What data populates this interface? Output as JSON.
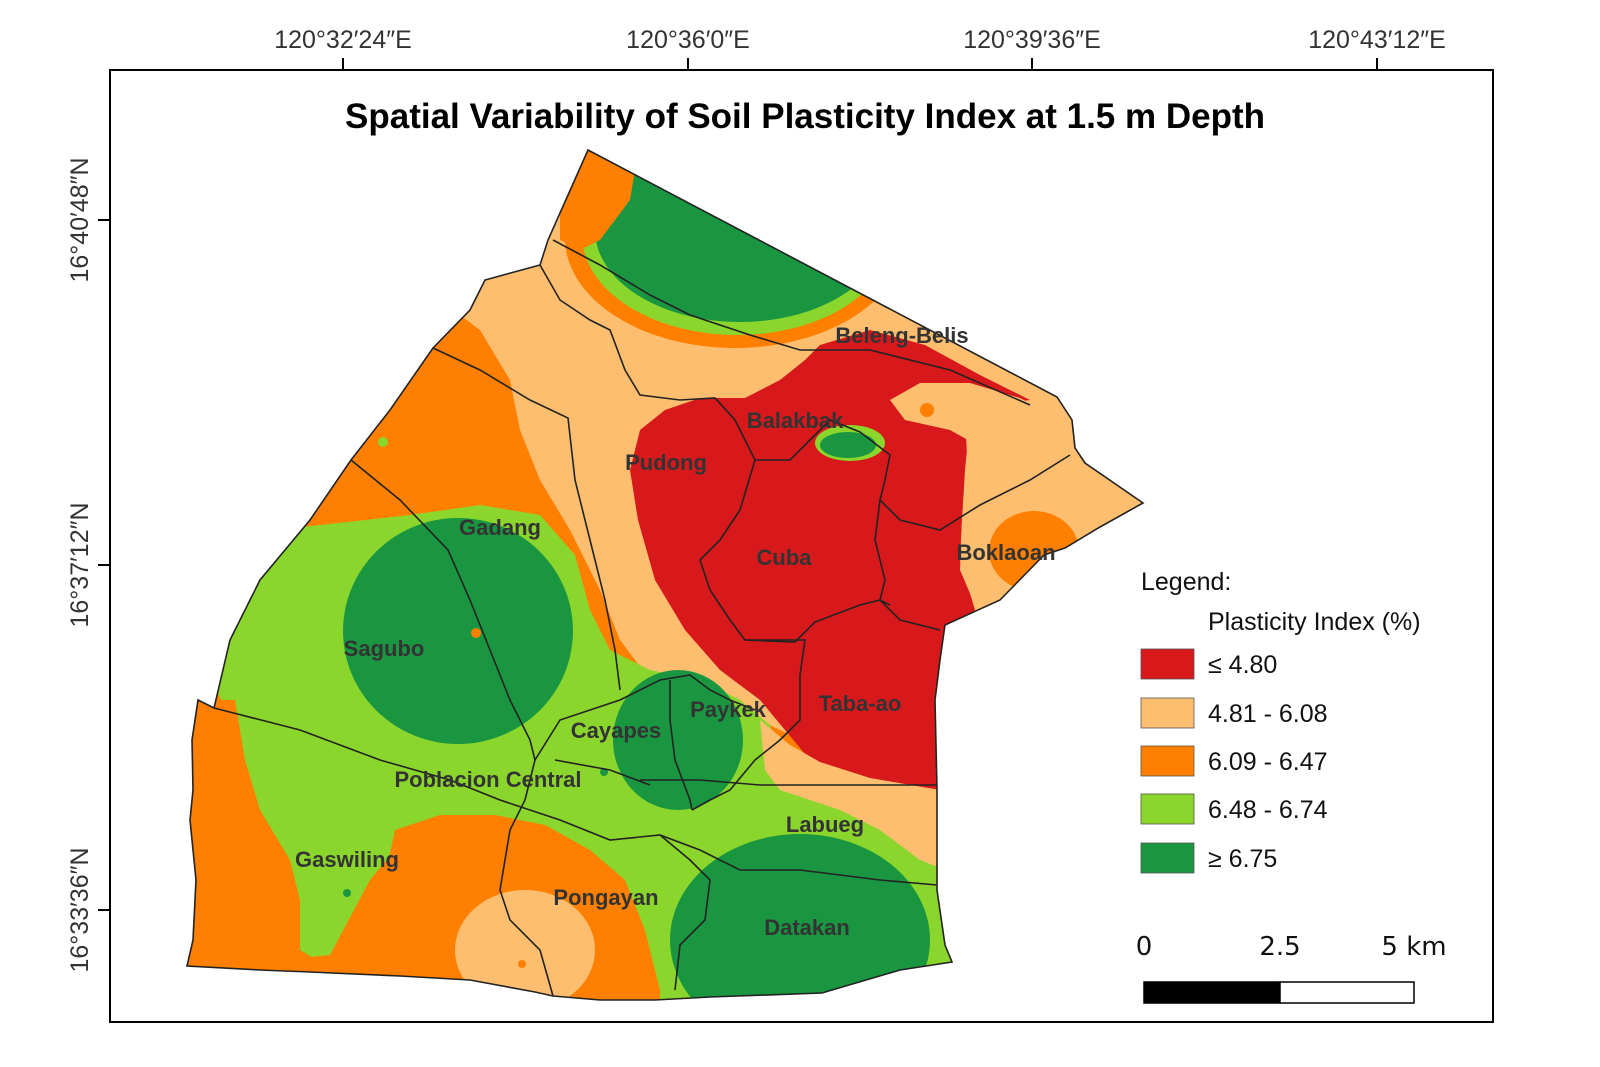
{
  "title": "Spatial Variability of Soil Plasticity Index at 1.5 m Depth",
  "graticule": {
    "longitude_labels": [
      "120°32′24″E",
      "120°36′0″E",
      "120°39′36″E",
      "120°43′12″E"
    ],
    "latitude_labels": [
      "16°40′48″N",
      "16°37′12″N",
      "16°33′36″N"
    ]
  },
  "barangays": {
    "beleng_belis": "Beleng-Belis",
    "balakbak": "Balakbak",
    "pudong": "Pudong",
    "gadang": "Gadang",
    "cuba": "Cuba",
    "boklaoan": "Boklaoan",
    "sagubo": "Sagubo",
    "paykek": "Paykek",
    "cayapes": "Cayapes",
    "taba_ao": "Taba-ao",
    "poblacion_central": "Poblacion Central",
    "labueg": "Labueg",
    "gaswiling": "Gaswiling",
    "pongayan": "Pongayan",
    "datakan": "Datakan"
  },
  "legend": {
    "heading": "Legend:",
    "subheading": "Plasticity Index (%)",
    "classes": [
      {
        "label": "≤ 4.80",
        "color": "#d7191c"
      },
      {
        "label": "4.81 - 6.08",
        "color": "#fdbf6f"
      },
      {
        "label": "6.09 - 6.47",
        "color": "#ff7f00"
      },
      {
        "label": "6.48 - 6.74",
        "color": "#8bd62c"
      },
      {
        "label": "≥ 6.75",
        "color": "#1a9641"
      }
    ]
  },
  "scale_bar": {
    "labels": [
      "0",
      "2.5",
      "5 km"
    ]
  }
}
